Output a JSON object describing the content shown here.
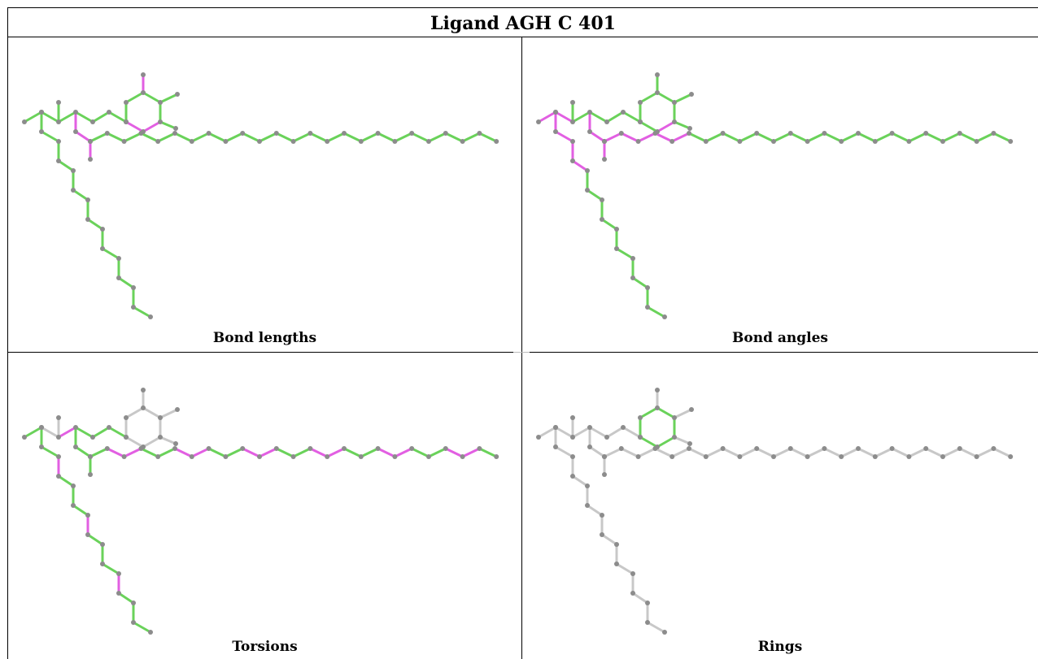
{
  "title": "Ligand AGH C 401",
  "panels": [
    {
      "key": "bond_lengths",
      "caption": "Bond lengths"
    },
    {
      "key": "bond_angles",
      "caption": "Bond angles"
    },
    {
      "key": "torsions",
      "caption": "Torsions"
    },
    {
      "key": "rings",
      "caption": "Rings"
    }
  ],
  "colors": {
    "ok": "#6ad25a",
    "outlier": "#e25fe2",
    "unassessed": "#c8c8c8",
    "atom": "#8c8c8c"
  },
  "molecule": {
    "bonds": [
      [
        0,
        1
      ],
      [
        1,
        2
      ],
      [
        2,
        3
      ],
      [
        3,
        4
      ],
      [
        4,
        5
      ],
      [
        5,
        6
      ],
      [
        6,
        7
      ],
      [
        7,
        8
      ],
      [
        8,
        9
      ],
      [
        9,
        10
      ],
      [
        10,
        11
      ],
      [
        11,
        12
      ],
      [
        12,
        13
      ],
      [
        13,
        14
      ],
      [
        14,
        15
      ],
      [
        15,
        16
      ],
      [
        16,
        17
      ],
      [
        17,
        18
      ],
      [
        18,
        19
      ],
      [
        19,
        20
      ],
      [
        20,
        21
      ],
      [
        21,
        22
      ],
      [
        22,
        23
      ],
      [
        24,
        25
      ],
      [
        25,
        26
      ],
      [
        26,
        27
      ],
      [
        27,
        28
      ],
      [
        28,
        29
      ],
      [
        29,
        30
      ],
      [
        30,
        31
      ],
      [
        31,
        32
      ],
      [
        32,
        33
      ],
      [
        33,
        34
      ],
      [
        34,
        35
      ],
      [
        35,
        36
      ],
      [
        36,
        37
      ],
      [
        38,
        2
      ],
      [
        38,
        39
      ],
      [
        38,
        40
      ],
      [
        40,
        41
      ],
      [
        41,
        42
      ],
      [
        42,
        43
      ],
      [
        41,
        44
      ],
      [
        44,
        45
      ],
      [
        45,
        46
      ],
      [
        46,
        47
      ],
      [
        47,
        48
      ],
      [
        48,
        49
      ],
      [
        49,
        50
      ],
      [
        50,
        51
      ],
      [
        51,
        52
      ],
      [
        52,
        53
      ],
      [
        53,
        54
      ],
      [
        54,
        55
      ],
      [
        55,
        56
      ],
      [
        56,
        57
      ],
      [
        57,
        58
      ],
      [
        58,
        59
      ],
      [
        59,
        60
      ],
      [
        60,
        61
      ],
      [
        61,
        62
      ],
      [
        62,
        63
      ],
      [
        63,
        64
      ],
      [
        64,
        65
      ],
      [
        65,
        66
      ],
      [
        66,
        67
      ],
      [
        67,
        68
      ],
      [
        68,
        69
      ],
      [
        69,
        70
      ],
      [
        70,
        71
      ],
      [
        71,
        72
      ],
      [
        72,
        73
      ],
      [
        41,
        25
      ],
      [
        24,
        74
      ],
      [
        3,
        75
      ],
      [
        43,
        76
      ],
      [
        76,
        77
      ],
      [
        77,
        78
      ],
      [
        78,
        79
      ],
      [
        79,
        80
      ],
      [
        80,
        43
      ],
      [
        77,
        81
      ],
      [
        79,
        82
      ],
      [
        82,
        83
      ]
    ],
    "status": {
      "bond_lengths": {
        "outlier": [
          3,
          77,
          78,
          79,
          80,
          81,
          82
        ]
      },
      "bond_angles": {
        "outlier": [
          3,
          4,
          5,
          6,
          7,
          77,
          78,
          79,
          80,
          81,
          82
        ]
      },
      "torsions": {
        "outlier": [
          5,
          7,
          9,
          11,
          13,
          15,
          17,
          19,
          21,
          23,
          28,
          32,
          36,
          77,
          78,
          79,
          80,
          81,
          82,
          84
        ],
        "unassessed": [
          86,
          87,
          88,
          89,
          90,
          91,
          92,
          74,
          75,
          38,
          37
        ]
      },
      "rings": {
        "ok": [
          84,
          85,
          86,
          87,
          88,
          89
        ]
      }
    }
  }
}
